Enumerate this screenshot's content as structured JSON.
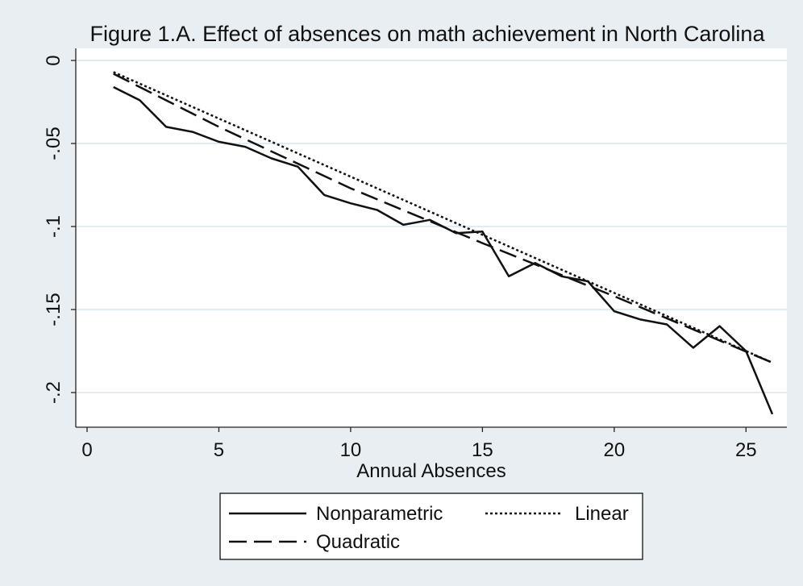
{
  "chart_data": {
    "type": "line",
    "title": "Figure 1.A. Effect of absences on math achievement in North Carolina",
    "xlabel": "Annual Absences",
    "ylabel": "",
    "xlim": [
      0,
      26.5
    ],
    "ylim": [
      -0.215,
      0.003
    ],
    "x_ticks": [
      0,
      5,
      10,
      15,
      20,
      25
    ],
    "x_tick_labels": [
      "0",
      "5",
      "10",
      "15",
      "20",
      "25"
    ],
    "y_ticks": [
      0,
      -0.05,
      -0.1,
      -0.15,
      -0.2
    ],
    "y_tick_labels": [
      "0",
      "-.05",
      "-.1",
      "-.15",
      "-.2"
    ],
    "grid": true,
    "legend_position": "bottom",
    "series": [
      {
        "name": "Nonparametric",
        "style": "solid",
        "x": [
          1,
          2,
          3,
          4,
          5,
          6,
          7,
          8,
          9,
          10,
          11,
          12,
          13,
          14,
          15,
          16,
          17,
          18,
          19,
          20,
          21,
          22,
          23,
          24,
          25,
          26
        ],
        "y": [
          -0.016,
          -0.024,
          -0.04,
          -0.043,
          -0.049,
          -0.052,
          -0.059,
          -0.064,
          -0.081,
          -0.086,
          -0.09,
          -0.099,
          -0.096,
          -0.104,
          -0.103,
          -0.13,
          -0.122,
          -0.13,
          -0.133,
          -0.151,
          -0.156,
          -0.159,
          -0.173,
          -0.16,
          -0.175,
          -0.213
        ]
      },
      {
        "name": "Linear",
        "style": "dotted",
        "x": [
          1,
          26
        ],
        "y": [
          -0.007,
          -0.182
        ]
      },
      {
        "name": "Quadratic",
        "style": "dashed",
        "x": [
          1,
          5,
          10,
          15,
          20,
          26
        ],
        "y": [
          -0.008,
          -0.04,
          -0.077,
          -0.11,
          -0.142,
          -0.182
        ]
      }
    ]
  },
  "legend": {
    "items": [
      {
        "label": "Nonparametric",
        "style": "solid"
      },
      {
        "label": "Linear",
        "style": "dotted"
      },
      {
        "label": "Quadratic",
        "style": "dashed"
      }
    ]
  },
  "colors": {
    "background": "#e9eef2",
    "plot_background": "#ffffff",
    "grid": "#e2ebf0",
    "line": "#111111"
  }
}
